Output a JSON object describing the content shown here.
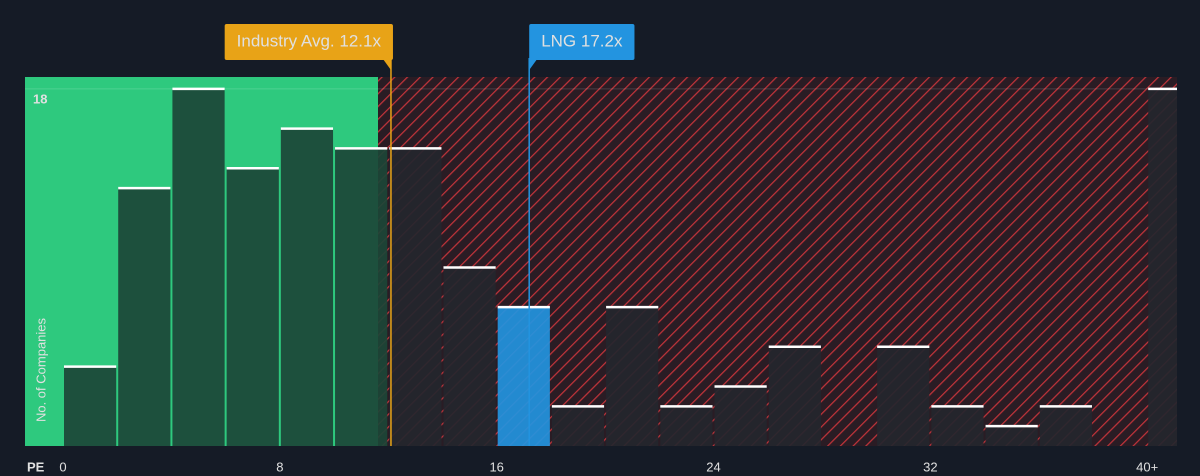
{
  "chart_data": {
    "type": "histogram",
    "bins": [
      0,
      2,
      4,
      6,
      8,
      10,
      12,
      14,
      16,
      18,
      20,
      22,
      24,
      26,
      28,
      30,
      32,
      34,
      36,
      38,
      40,
      42
    ],
    "values": [
      4,
      13,
      18,
      14,
      16,
      15,
      15,
      9,
      7,
      2,
      7,
      2,
      3,
      5,
      0,
      5,
      2,
      1,
      2,
      0,
      18
    ],
    "colors": [
      "#1c4537",
      "#1c4537",
      "#1c4537",
      "#1c4537",
      "#1c4537",
      "#1c4537",
      "#24262e",
      "#24262e",
      "#2394e0",
      "#24262e",
      "#24262e",
      "#24262e",
      "#24262e",
      "#24262e",
      "#24262e",
      "#24262e",
      "#24262e",
      "#24262e",
      "#24262e",
      "#24262e",
      "#24262e"
    ],
    "xlim": [
      0,
      41.1
    ],
    "ylim": [
      0,
      18.6
    ],
    "xticks": [
      0,
      8,
      16,
      24,
      32,
      {
        "value": 40,
        "label": "40+"
      }
    ],
    "yticks": [
      18
    ],
    "x_label": "PE",
    "y_label": "No. of Companies",
    "markers": [
      {
        "label": "Industry Avg. 12.1x",
        "value": 12.1,
        "color": "#e8a317"
      },
      {
        "label": "LNG 17.2x",
        "value": 17.2,
        "color": "#2394e0"
      }
    ]
  }
}
